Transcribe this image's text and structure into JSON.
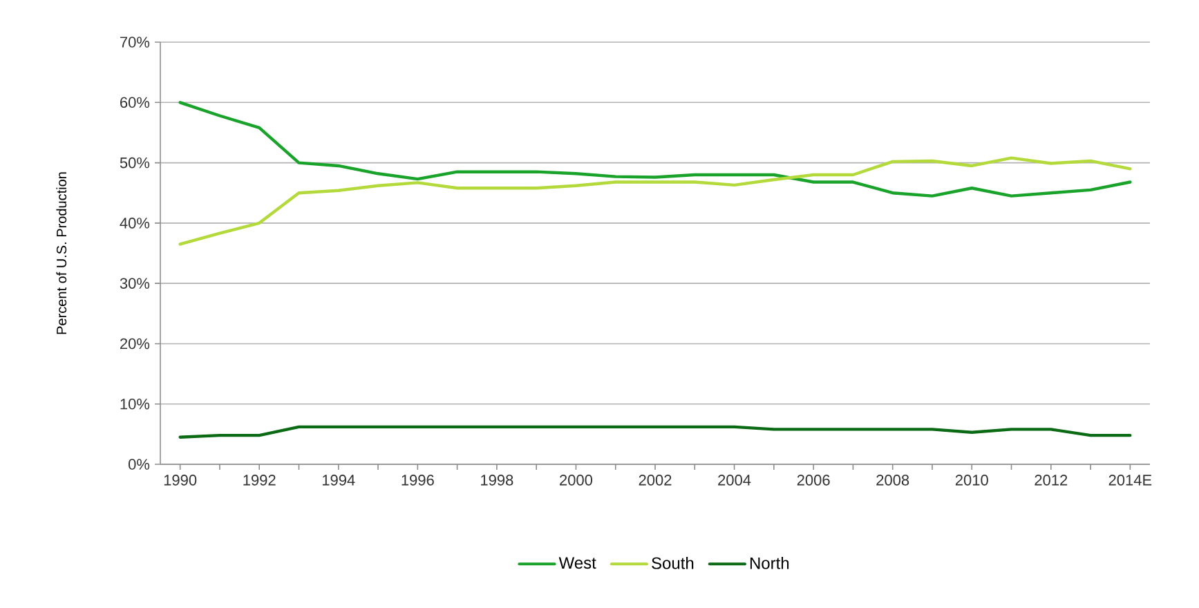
{
  "chart_data": {
    "type": "line",
    "ylabel": "Percent of U.S. Production",
    "categories": [
      "1990",
      null,
      "1992",
      null,
      "1994",
      null,
      "1996",
      null,
      "1998",
      null,
      "2000",
      null,
      "2002",
      null,
      "2004",
      null,
      "2006",
      null,
      "2008",
      null,
      "2010",
      null,
      "2012",
      null,
      "2014E"
    ],
    "series": [
      {
        "name": "West",
        "color": "#19a32a",
        "values": [
          60,
          57.8,
          55.8,
          50,
          49.5,
          48.2,
          47.3,
          48.5,
          48.5,
          48.5,
          48.2,
          47.7,
          47.6,
          48,
          48,
          48,
          46.8,
          46.8,
          45,
          44.5,
          45.8,
          44.5,
          45,
          45.5,
          46.8
        ]
      },
      {
        "name": "South",
        "color": "#b3d93b",
        "values": [
          36.5,
          38.3,
          40,
          45,
          45.4,
          46.2,
          46.7,
          45.8,
          45.8,
          45.8,
          46.2,
          46.8,
          46.8,
          46.8,
          46.3,
          47.2,
          48,
          48,
          50.2,
          50.3,
          49.5,
          50.8,
          49.9,
          50.3,
          49
        ]
      },
      {
        "name": "North",
        "color": "#0b6a14",
        "values": [
          4.5,
          4.8,
          4.8,
          6.2,
          6.2,
          6.2,
          6.2,
          6.2,
          6.2,
          6.2,
          6.2,
          6.2,
          6.2,
          6.2,
          6.2,
          5.8,
          5.8,
          5.8,
          5.8,
          5.8,
          5.3,
          5.8,
          5.8,
          4.8,
          4.8
        ]
      }
    ],
    "ylim": [
      0,
      70
    ],
    "yticks": [
      {
        "value": 0,
        "label": "0%"
      },
      {
        "value": 10,
        "label": "10%"
      },
      {
        "value": 20,
        "label": "20%"
      },
      {
        "value": 30,
        "label": "30%"
      },
      {
        "value": 40,
        "label": "40%"
      },
      {
        "value": 50,
        "label": "50%"
      },
      {
        "value": 60,
        "label": "60%"
      },
      {
        "value": 70,
        "label": "70%"
      }
    ],
    "grid": "y",
    "legend": "bottom",
    "marker": "none",
    "line_style": "solid"
  }
}
